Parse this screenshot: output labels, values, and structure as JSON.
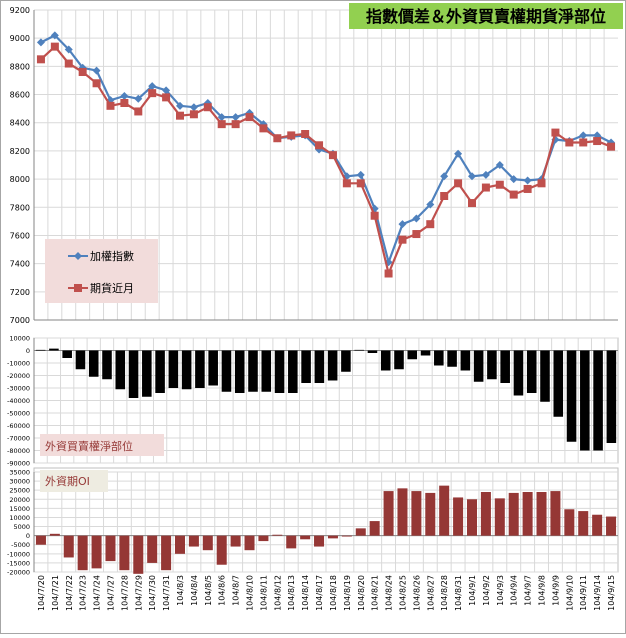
{
  "chart_data": [
    {
      "type": "line",
      "title": "指數價差＆外資買賣權期貨淨部位",
      "ylim": [
        7000,
        9200
      ],
      "yticks": [
        7000,
        7200,
        7400,
        7600,
        7800,
        8000,
        8200,
        8400,
        8600,
        8800,
        9000,
        9200
      ],
      "grid": true,
      "legend": "bottom-left",
      "series": [
        {
          "name": "加權指數",
          "color": "#4f81bd",
          "marker": "diamond",
          "values": [
            8970,
            9020,
            8920,
            8790,
            8770,
            8560,
            8590,
            8570,
            8660,
            8630,
            8520,
            8510,
            8540,
            8440,
            8440,
            8470,
            8390,
            8290,
            8300,
            8310,
            8210,
            8180,
            8020,
            8030,
            7790,
            7410,
            7680,
            7720,
            7820,
            8020,
            8180,
            8020,
            8030,
            8100,
            8000,
            7990,
            8000,
            8280,
            8270,
            8310,
            8310,
            8260
          ]
        },
        {
          "name": "期貨近月",
          "color": "#c0504d",
          "marker": "square",
          "values": [
            8850,
            8940,
            8820,
            8760,
            8680,
            8520,
            8540,
            8480,
            8610,
            8580,
            8450,
            8460,
            8510,
            8390,
            8390,
            8440,
            8360,
            8290,
            8310,
            8320,
            8240,
            8170,
            7970,
            7970,
            7740,
            7330,
            7570,
            7610,
            7680,
            7880,
            7970,
            7830,
            7940,
            7960,
            7890,
            7930,
            7970,
            8330,
            8260,
            8260,
            8270,
            8230
          ]
        }
      ]
    },
    {
      "type": "bar",
      "title": "外資買賣權淨部位",
      "ylim": [
        -90000,
        10000
      ],
      "yticks": [
        10000,
        0,
        -10000,
        -20000,
        -30000,
        -40000,
        -50000,
        -60000,
        -70000,
        -80000,
        -90000
      ],
      "grid": true,
      "series": [
        {
          "color": "#000000",
          "values": [
            500,
            1500,
            -6000,
            -15000,
            -21000,
            -23000,
            -31000,
            -38000,
            -37000,
            -34000,
            -30000,
            -31000,
            -30000,
            -28000,
            -33000,
            -34000,
            -33000,
            -33000,
            -34000,
            -34000,
            -26000,
            -26000,
            -24000,
            -17000,
            500,
            -2000,
            -16000,
            -15000,
            -7000,
            -4000,
            -12000,
            -13000,
            -16000,
            -25000,
            -23000,
            -26000,
            -36000,
            -34000,
            -41000,
            -53000,
            -73000,
            -80000,
            -80000,
            -74000
          ]
        }
      ]
    },
    {
      "type": "bar",
      "title": "外資期OI",
      "ylim": [
        -20000,
        35000
      ],
      "yticks": [
        35000,
        30000,
        25000,
        20000,
        15000,
        10000,
        5000,
        0,
        -5000,
        -10000,
        -15000,
        -20000
      ],
      "grid": true,
      "categories": [
        "104/7/20",
        "104/7/21",
        "104/7/22",
        "104/7/23",
        "104/7/24",
        "104/7/27",
        "104/7/28",
        "104/7/29",
        "104/7/30",
        "104/7/31",
        "104/8/3",
        "104/8/4",
        "104/8/5",
        "104/8/6",
        "104/8/7",
        "104/8/10",
        "104/8/11",
        "104/8/12",
        "104/8/13",
        "104/8/14",
        "104/8/17",
        "104/8/18",
        "104/8/19",
        "104/8/20",
        "104/8/21",
        "104/8/24",
        "104/8/25",
        "104/8/26",
        "104/8/27",
        "104/8/28",
        "104/8/31",
        "104/9/1",
        "104/9/2",
        "104/9/3",
        "104/9/4",
        "104/9/7",
        "104/9/8",
        "104/9/9",
        "104/9/10",
        "104/9/11",
        "104/9/14",
        "104/9/15"
      ],
      "series": [
        {
          "color": "#953735",
          "values": [
            -5000,
            1000,
            -12000,
            -19000,
            -18000,
            -14000,
            -19000,
            -21000,
            -15000,
            -19000,
            -10000,
            -6000,
            -8000,
            -16000,
            -6000,
            -8000,
            -3000,
            500,
            -7000,
            -2000,
            -6000,
            -1500,
            -500,
            4000,
            8000,
            24500,
            26000,
            24500,
            23500,
            27500,
            21000,
            20000,
            24000,
            20500,
            23500,
            24000,
            24000,
            24500,
            14500,
            13500,
            11500,
            10500
          ]
        }
      ]
    }
  ]
}
